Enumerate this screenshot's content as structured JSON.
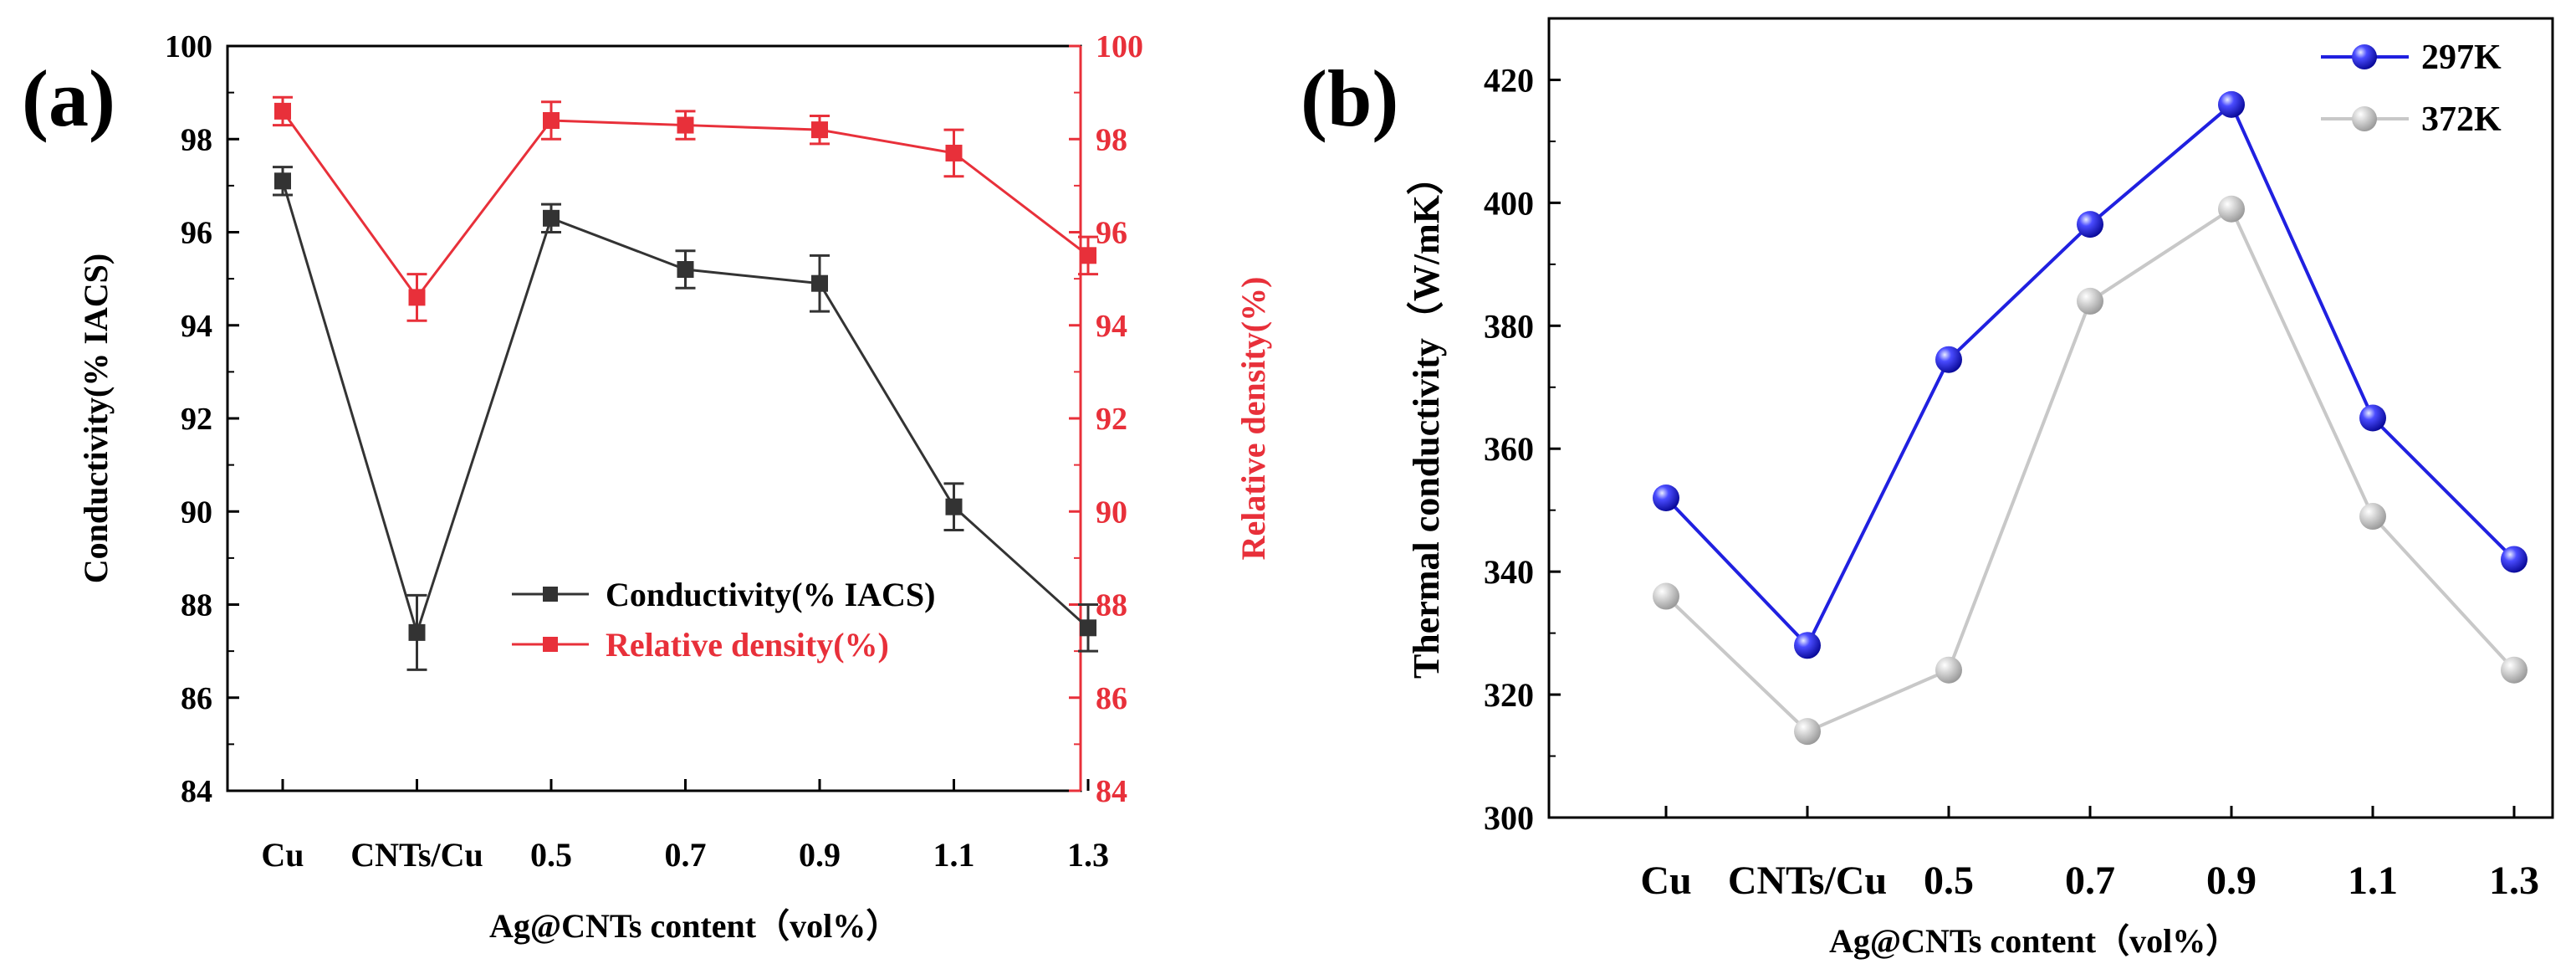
{
  "chart_data": [
    {
      "type": "line",
      "panel_label": "(a)",
      "title": "",
      "xlabel": "Ag@CNTs content（vol%）",
      "ylabel": "Conductivity(% IACS)",
      "y2label": "Relative density(%)",
      "categories": [
        "Cu",
        "CNTs/Cu",
        "0.5",
        "0.7",
        "0.9",
        "1.1",
        "1.3"
      ],
      "ylim": [
        84,
        100
      ],
      "y2lim": [
        84,
        100
      ],
      "yticks": [
        "84",
        "86",
        "88",
        "90",
        "92",
        "94",
        "96",
        "98",
        "100"
      ],
      "y2ticks": [
        "84",
        "86",
        "88",
        "90",
        "92",
        "94",
        "96",
        "98",
        "100"
      ],
      "legend_position": "center-right",
      "series": [
        {
          "name": "Conductivity(% IACS)",
          "axis": "left",
          "color": "#333333",
          "marker": "square",
          "values": [
            97.1,
            87.4,
            96.3,
            95.2,
            94.9,
            90.1,
            87.5
          ],
          "errors": [
            0.3,
            0.8,
            0.3,
            0.4,
            0.6,
            0.5,
            0.5
          ]
        },
        {
          "name": "Relative density(%)",
          "axis": "right",
          "color": "#e8303a",
          "marker": "square",
          "values": [
            98.6,
            94.6,
            98.4,
            98.3,
            98.2,
            97.7,
            95.5
          ],
          "errors": [
            0.3,
            0.5,
            0.4,
            0.3,
            0.3,
            0.5,
            0.4
          ]
        }
      ]
    },
    {
      "type": "line",
      "panel_label": "(b)",
      "title": "",
      "xlabel": "Ag@CNTs content（vol%）",
      "ylabel": "Thermal conductivity（W/mK）",
      "categories": [
        "Cu",
        "CNTs/Cu",
        "0.5",
        "0.7",
        "0.9",
        "1.1",
        "1.3"
      ],
      "ylim": [
        300,
        430
      ],
      "yticks": [
        "300",
        "320",
        "340",
        "360",
        "380",
        "400",
        "420"
      ],
      "legend_position": "top-right",
      "series": [
        {
          "name": "297K",
          "color": "#2020e0",
          "marker": "sphere",
          "values": [
            352,
            328,
            374.5,
            396.5,
            416,
            365,
            342
          ]
        },
        {
          "name": "372K",
          "color": "#c8c8c8",
          "marker": "sphere",
          "values": [
            336,
            314,
            324,
            384,
            399,
            349,
            324
          ]
        }
      ]
    }
  ]
}
